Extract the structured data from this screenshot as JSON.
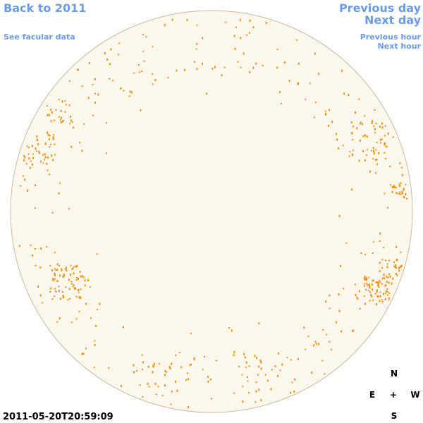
{
  "navigation": {
    "back": "Back to 2011",
    "facular": "See facular data",
    "previous_day": "Previous day",
    "next_day": "Next day",
    "previous_hour": "Previous hour",
    "next_hour": "Next hour"
  },
  "timestamp": "2011-05-20T20:59:09",
  "compass": {
    "north": "N",
    "east": "E",
    "center": "+",
    "west": "W",
    "south": "S"
  }
}
